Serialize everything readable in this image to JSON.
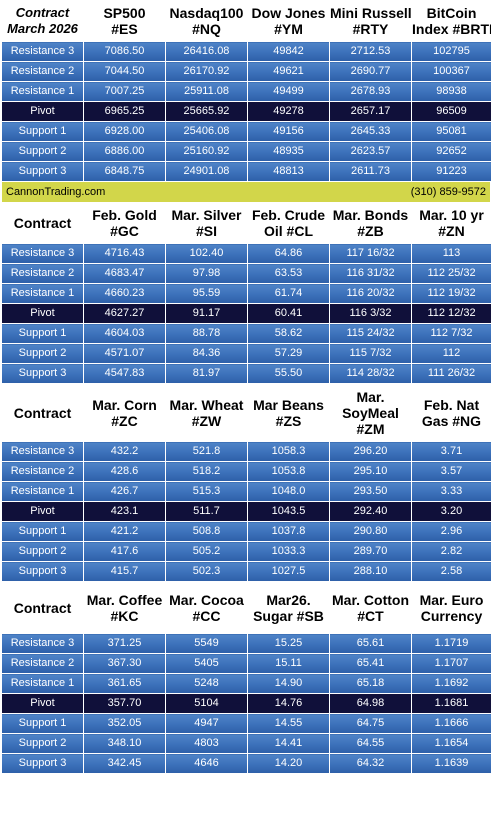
{
  "sections": [
    {
      "header": {
        "label_line1": "Contract",
        "label_line2": "March 2026"
      },
      "columns": [
        {
          "line1": "SP500",
          "line2": "#ES"
        },
        {
          "line1": "Nasdaq100",
          "line2": "#NQ"
        },
        {
          "line1": "Dow Jones",
          "line2": "#YM"
        },
        {
          "line1": "Mini Russell",
          "line2": "#RTY"
        },
        {
          "line1": "BitCoin",
          "line2": "Index #BRTI"
        }
      ],
      "rows": [
        {
          "label": "Resistance 3",
          "values": [
            "7086.50",
            "26416.08",
            "49842",
            "2712.53",
            "102795"
          ]
        },
        {
          "label": "Resistance 2",
          "values": [
            "7044.50",
            "26170.92",
            "49621",
            "2690.77",
            "100367"
          ]
        },
        {
          "label": "Resistance 1",
          "values": [
            "7007.25",
            "25911.08",
            "49499",
            "2678.93",
            "98938"
          ]
        },
        {
          "label": "Pivot",
          "values": [
            "6965.25",
            "25665.92",
            "49278",
            "2657.17",
            "96509"
          ]
        },
        {
          "label": "Support 1",
          "values": [
            "6928.00",
            "25406.08",
            "49156",
            "2645.33",
            "95081"
          ]
        },
        {
          "label": "Support 2",
          "values": [
            "6886.00",
            "25160.92",
            "48935",
            "2623.57",
            "92652"
          ]
        },
        {
          "label": "Support 3",
          "values": [
            "6848.75",
            "24901.08",
            "48813",
            "2611.73",
            "91223"
          ]
        }
      ]
    },
    {
      "header": {
        "label_line1": "Contract",
        "label_line2": ""
      },
      "columns": [
        {
          "line1": "Feb. Gold",
          "line2": "#GC"
        },
        {
          "line1": "Mar. Silver",
          "line2": "#SI"
        },
        {
          "line1": "Feb. Crude",
          "line2": "Oil #CL"
        },
        {
          "line1": "Mar. Bonds",
          "line2": "#ZB"
        },
        {
          "line1": "Mar. 10 yr",
          "line2": "#ZN"
        }
      ],
      "rows": [
        {
          "label": "Resistance 3",
          "values": [
            "4716.43",
            "102.40",
            "64.86",
            "117 16/32",
            "113"
          ]
        },
        {
          "label": "Resistance 2",
          "values": [
            "4683.47",
            "97.98",
            "63.53",
            "116 31/32",
            "112 25/32"
          ]
        },
        {
          "label": "Resistance 1",
          "values": [
            "4660.23",
            "95.59",
            "61.74",
            "116 20/32",
            "112 19/32"
          ]
        },
        {
          "label": "Pivot",
          "values": [
            "4627.27",
            "91.17",
            "60.41",
            "116  3/32",
            "112 12/32"
          ]
        },
        {
          "label": "Support 1",
          "values": [
            "4604.03",
            "88.78",
            "58.62",
            "115 24/32",
            "112  7/32"
          ]
        },
        {
          "label": "Support 2",
          "values": [
            "4571.07",
            "84.36",
            "57.29",
            "115  7/32",
            "112"
          ]
        },
        {
          "label": "Support 3",
          "values": [
            "4547.83",
            "81.97",
            "55.50",
            "114 28/32",
            "111 26/32"
          ]
        }
      ]
    },
    {
      "header": {
        "label_line1": "Contract",
        "label_line2": ""
      },
      "columns": [
        {
          "line1": "Mar. Corn",
          "line2": "#ZC"
        },
        {
          "line1": "Mar.  Wheat",
          "line2": "#ZW"
        },
        {
          "line1": "Mar Beans",
          "line2": "#ZS"
        },
        {
          "line1": "Mar.",
          "line2": "SoyMeal",
          "line3": "#ZM"
        },
        {
          "line1": "Feb. Nat",
          "line2": "Gas #NG"
        }
      ],
      "rows": [
        {
          "label": "Resistance 3",
          "values": [
            "432.2",
            "521.8",
            "1058.3",
            "296.20",
            "3.71"
          ]
        },
        {
          "label": "Resistance 2",
          "values": [
            "428.6",
            "518.2",
            "1053.8",
            "295.10",
            "3.57"
          ]
        },
        {
          "label": "Resistance 1",
          "values": [
            "426.7",
            "515.3",
            "1048.0",
            "293.50",
            "3.33"
          ]
        },
        {
          "label": "Pivot",
          "values": [
            "423.1",
            "511.7",
            "1043.5",
            "292.40",
            "3.20"
          ]
        },
        {
          "label": "Support 1",
          "values": [
            "421.2",
            "508.8",
            "1037.8",
            "290.80",
            "2.96"
          ]
        },
        {
          "label": "Support 2",
          "values": [
            "417.6",
            "505.2",
            "1033.3",
            "289.70",
            "2.82"
          ]
        },
        {
          "label": "Support 3",
          "values": [
            "415.7",
            "502.3",
            "1027.5",
            "288.10",
            "2.58"
          ]
        }
      ]
    },
    {
      "header": {
        "label_line1": "Contract",
        "label_line2": ""
      },
      "columns": [
        {
          "line1": "Mar. Coffee",
          "line2": "#KC"
        },
        {
          "line1": "Mar. Cocoa",
          "line2": "#CC"
        },
        {
          "line1": "Mar26.",
          "line2": "Sugar #SB"
        },
        {
          "line1": "Mar. Cotton",
          "line2": "#CT"
        },
        {
          "line1": "Mar. Euro",
          "line2": "Currency"
        }
      ],
      "rows": [
        {
          "label": "Resistance 3",
          "values": [
            "371.25",
            "5549",
            "15.25",
            "65.61",
            "1.1719"
          ]
        },
        {
          "label": "Resistance 2",
          "values": [
            "367.30",
            "5405",
            "15.11",
            "65.41",
            "1.1707"
          ]
        },
        {
          "label": "Resistance 1",
          "values": [
            "361.65",
            "5248",
            "14.90",
            "65.18",
            "1.1692"
          ]
        },
        {
          "label": "Pivot",
          "values": [
            "357.70",
            "5104",
            "14.76",
            "64.98",
            "1.1681"
          ]
        },
        {
          "label": "Support 1",
          "values": [
            "352.05",
            "4947",
            "14.55",
            "64.75",
            "1.1666"
          ]
        },
        {
          "label": "Support 2",
          "values": [
            "348.10",
            "4803",
            "14.41",
            "64.55",
            "1.1654"
          ]
        },
        {
          "label": "Support 3",
          "values": [
            "342.45",
            "4646",
            "14.20",
            "64.32",
            "1.1639"
          ]
        }
      ]
    }
  ],
  "banner": {
    "site": "CannonTrading.com",
    "phone": "(310) 859-9572"
  },
  "colors": {
    "row_bg": "#3d72bb",
    "pivot_bg": "#10103a",
    "banner_bg": "#d2d64a",
    "header_bg": "#ffffff"
  }
}
